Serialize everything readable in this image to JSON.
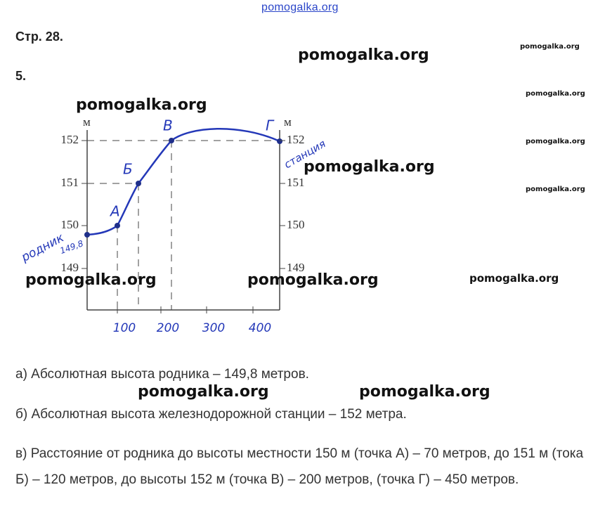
{
  "watermark_top": "pomogalka.org",
  "page_ref": "Стр. 28.",
  "task_number": "5.",
  "watermarks_large": [
    "pomogalka.org",
    "pomogalka.org",
    "pomogalka.org",
    "pomogalka.org",
    "pomogalka.org",
    "pomogalka.org",
    "pomogalka.org"
  ],
  "watermarks_small": [
    "pomogalka.org",
    "pomogalka.org",
    "pomogalka.org",
    "pomogalka.org",
    "pomogalka.org"
  ],
  "figure": {
    "unit_left": "м",
    "unit_right": "м",
    "y_ticks_left": [
      152,
      151,
      150,
      149
    ],
    "y_ticks_right": [
      152,
      151,
      150,
      149
    ],
    "x_ticks": [
      100,
      200,
      300,
      400
    ],
    "point_labels": [
      "А",
      "Б",
      "В",
      "Г"
    ],
    "spring_label": "родник",
    "spring_height": "149,8",
    "station_label": "станция"
  },
  "answers": [
    "а) Абсолютная высота родника – 149,8 метров.",
    "б) Абсолютная высота железнодорожной станции – 152 метра.",
    "в) Расстояние от родника до высоты местности 150 м (точка А) – 70 метров, до 151 м (тока Б) – 120 метров, до высоты 152 м (точка В) – 200 метров, (точка Г) – 450 метров."
  ]
}
